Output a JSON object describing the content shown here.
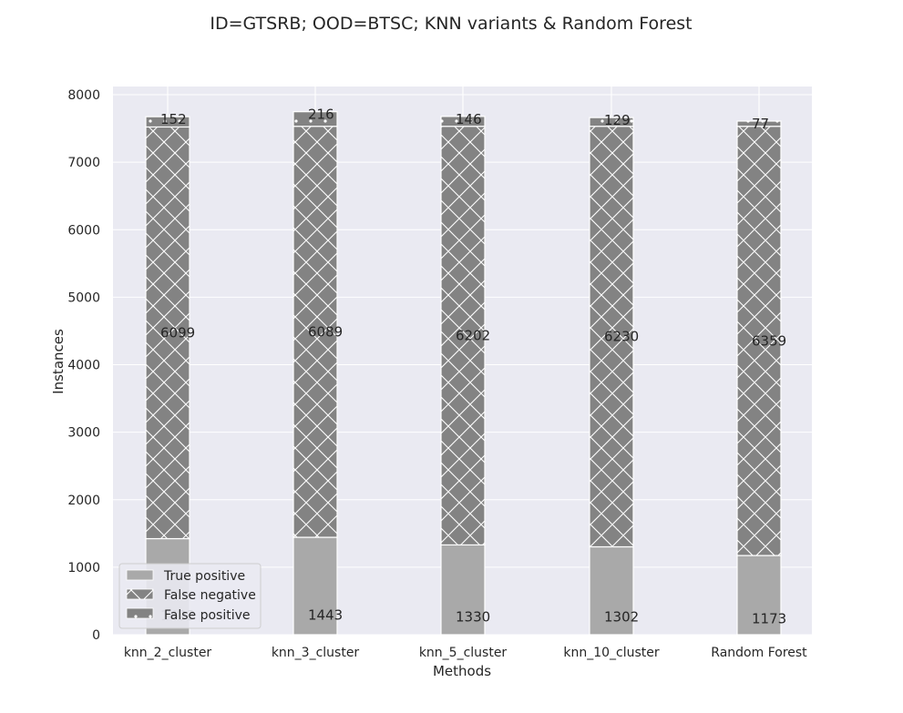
{
  "chart_data": {
    "type": "bar",
    "stacked": true,
    "title": "ID=GTSRB; OOD=BTSC; KNN variants & Random Forest",
    "xlabel": "Methods",
    "ylabel": "Instances",
    "ylim": [
      0,
      8100
    ],
    "yticks": [
      0,
      1000,
      2000,
      3000,
      4000,
      5000,
      6000,
      7000,
      8000
    ],
    "grid": true,
    "legend_position": "lower-left",
    "categories": [
      "knn_2_cluster",
      "knn_3_cluster",
      "knn_5_cluster",
      "knn_10_cluster",
      "Random Forest"
    ],
    "series": [
      {
        "name": "True positive",
        "values": [
          1423,
          1443,
          1330,
          1302,
          1173
        ],
        "color": "#a9a9a9",
        "hatch": "none"
      },
      {
        "name": "False negative",
        "values": [
          6099,
          6089,
          6202,
          6230,
          6359
        ],
        "color": "#838383",
        "hatch": "cross"
      },
      {
        "name": "False positive",
        "values": [
          152,
          216,
          146,
          129,
          77
        ],
        "color": "#838383",
        "hatch": "dots"
      }
    ],
    "background_color": "#eaeaf2"
  }
}
